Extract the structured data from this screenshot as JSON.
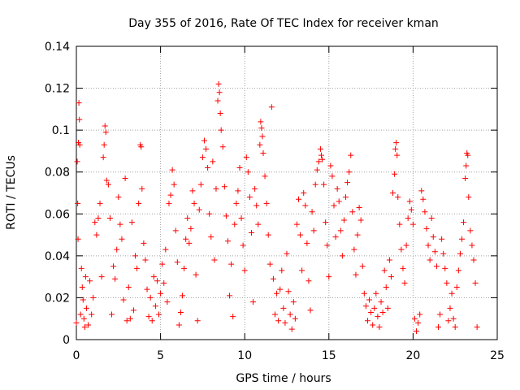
{
  "chart_data": {
    "type": "scatter",
    "title": "Day 355 of 2016, Rate Of TEC Index for receiver kman",
    "xlabel": "GPS time / hours",
    "ylabel": "ROTI / TECUs",
    "xlim": [
      0,
      25
    ],
    "ylim": [
      0,
      0.14
    ],
    "xticks": [
      0,
      5,
      10,
      15,
      20,
      25
    ],
    "xtick_labels": [
      "0",
      "5",
      "10",
      "15",
      "20",
      "25"
    ],
    "yticks": [
      0,
      0.02,
      0.04,
      0.06,
      0.08,
      0.1,
      0.12,
      0.14
    ],
    "ytick_labels": [
      "0",
      "0.02",
      "0.04",
      "0.06",
      "0.08",
      "0.1",
      "0.12",
      "0.14"
    ],
    "grid": true,
    "marker": "+",
    "marker_color": "#ff0000",
    "series": [
      {
        "name": "ROTI",
        "points": [
          [
            0.0,
            0.008
          ],
          [
            0.05,
            0.085
          ],
          [
            0.08,
            0.065
          ],
          [
            0.1,
            0.048
          ],
          [
            0.12,
            0.094
          ],
          [
            0.15,
            0.113
          ],
          [
            0.18,
            0.105
          ],
          [
            0.2,
            0.093
          ],
          [
            0.25,
            0.012
          ],
          [
            0.3,
            0.034
          ],
          [
            0.35,
            0.025
          ],
          [
            0.4,
            0.019
          ],
          [
            0.45,
            0.01
          ],
          [
            0.5,
            0.006
          ],
          [
            0.55,
            0.03
          ],
          [
            0.6,
            0.015
          ],
          [
            0.7,
            0.007
          ],
          [
            0.8,
            0.028
          ],
          [
            0.9,
            0.012
          ],
          [
            1.0,
            0.02
          ],
          [
            1.1,
            0.056
          ],
          [
            1.2,
            0.05
          ],
          [
            1.3,
            0.058
          ],
          [
            1.4,
            0.065
          ],
          [
            1.5,
            0.03
          ],
          [
            1.6,
            0.087
          ],
          [
            1.65,
            0.093
          ],
          [
            1.7,
            0.102
          ],
          [
            1.75,
            0.099
          ],
          [
            1.8,
            0.076
          ],
          [
            1.9,
            0.074
          ],
          [
            2.0,
            0.058
          ],
          [
            2.1,
            0.012
          ],
          [
            2.2,
            0.035
          ],
          [
            2.3,
            0.029
          ],
          [
            2.4,
            0.043
          ],
          [
            2.5,
            0.068
          ],
          [
            2.6,
            0.055
          ],
          [
            2.7,
            0.048
          ],
          [
            2.8,
            0.019
          ],
          [
            2.9,
            0.077
          ],
          [
            3.0,
            0.009
          ],
          [
            3.1,
            0.025
          ],
          [
            3.2,
            0.01
          ],
          [
            3.3,
            0.056
          ],
          [
            3.4,
            0.014
          ],
          [
            3.5,
            0.04
          ],
          [
            3.6,
            0.034
          ],
          [
            3.7,
            0.065
          ],
          [
            3.8,
            0.093
          ],
          [
            3.85,
            0.092
          ],
          [
            3.9,
            0.072
          ],
          [
            4.0,
            0.046
          ],
          [
            4.1,
            0.038
          ],
          [
            4.2,
            0.024
          ],
          [
            4.3,
            0.011
          ],
          [
            4.4,
            0.02
          ],
          [
            4.5,
            0.009
          ],
          [
            4.6,
            0.03
          ],
          [
            4.7,
            0.016
          ],
          [
            4.8,
            0.028
          ],
          [
            4.9,
            0.012
          ],
          [
            5.0,
            0.022
          ],
          [
            5.1,
            0.036
          ],
          [
            5.2,
            0.027
          ],
          [
            5.3,
            0.043
          ],
          [
            5.4,
            0.018
          ],
          [
            5.5,
            0.065
          ],
          [
            5.6,
            0.069
          ],
          [
            5.7,
            0.081
          ],
          [
            5.8,
            0.074
          ],
          [
            5.9,
            0.052
          ],
          [
            6.0,
            0.037
          ],
          [
            6.1,
            0.007
          ],
          [
            6.2,
            0.013
          ],
          [
            6.3,
            0.021
          ],
          [
            6.4,
            0.034
          ],
          [
            6.5,
            0.048
          ],
          [
            6.6,
            0.058
          ],
          [
            6.7,
            0.046
          ],
          [
            6.8,
            0.053
          ],
          [
            6.9,
            0.071
          ],
          [
            7.0,
            0.065
          ],
          [
            7.1,
            0.031
          ],
          [
            7.2,
            0.009
          ],
          [
            7.3,
            0.062
          ],
          [
            7.4,
            0.074
          ],
          [
            7.5,
            0.087
          ],
          [
            7.6,
            0.095
          ],
          [
            7.7,
            0.091
          ],
          [
            7.8,
            0.082
          ],
          [
            7.9,
            0.06
          ],
          [
            8.0,
            0.049
          ],
          [
            8.1,
            0.085
          ],
          [
            8.2,
            0.038
          ],
          [
            8.3,
            0.072
          ],
          [
            8.4,
            0.114
          ],
          [
            8.45,
            0.122
          ],
          [
            8.5,
            0.118
          ],
          [
            8.55,
            0.108
          ],
          [
            8.6,
            0.1
          ],
          [
            8.7,
            0.092
          ],
          [
            8.8,
            0.073
          ],
          [
            8.9,
            0.059
          ],
          [
            9.0,
            0.047
          ],
          [
            9.1,
            0.021
          ],
          [
            9.2,
            0.036
          ],
          [
            9.3,
            0.011
          ],
          [
            9.4,
            0.055
          ],
          [
            9.5,
            0.065
          ],
          [
            9.6,
            0.071
          ],
          [
            9.7,
            0.082
          ],
          [
            9.8,
            0.058
          ],
          [
            9.9,
            0.045
          ],
          [
            10.0,
            0.033
          ],
          [
            10.1,
            0.087
          ],
          [
            10.2,
            0.08
          ],
          [
            10.3,
            0.068
          ],
          [
            10.4,
            0.051
          ],
          [
            10.5,
            0.018
          ],
          [
            10.6,
            0.072
          ],
          [
            10.7,
            0.064
          ],
          [
            10.8,
            0.055
          ],
          [
            10.9,
            0.093
          ],
          [
            10.95,
            0.104
          ],
          [
            11.0,
            0.101
          ],
          [
            11.05,
            0.097
          ],
          [
            11.1,
            0.089
          ],
          [
            11.2,
            0.078
          ],
          [
            11.3,
            0.065
          ],
          [
            11.4,
            0.05
          ],
          [
            11.5,
            0.036
          ],
          [
            11.6,
            0.111
          ],
          [
            11.7,
            0.029
          ],
          [
            11.8,
            0.012
          ],
          [
            11.9,
            0.022
          ],
          [
            12.0,
            0.009
          ],
          [
            12.1,
            0.024
          ],
          [
            12.2,
            0.033
          ],
          [
            12.3,
            0.015
          ],
          [
            12.4,
            0.008
          ],
          [
            12.5,
            0.041
          ],
          [
            12.6,
            0.023
          ],
          [
            12.7,
            0.012
          ],
          [
            12.8,
            0.005
          ],
          [
            12.9,
            0.018
          ],
          [
            13.0,
            0.01
          ],
          [
            13.1,
            0.055
          ],
          [
            13.2,
            0.067
          ],
          [
            13.3,
            0.05
          ],
          [
            13.4,
            0.033
          ],
          [
            13.5,
            0.07
          ],
          [
            13.6,
            0.064
          ],
          [
            13.7,
            0.046
          ],
          [
            13.8,
            0.028
          ],
          [
            13.9,
            0.014
          ],
          [
            14.0,
            0.061
          ],
          [
            14.1,
            0.052
          ],
          [
            14.2,
            0.074
          ],
          [
            14.3,
            0.081
          ],
          [
            14.4,
            0.085
          ],
          [
            14.5,
            0.091
          ],
          [
            14.55,
            0.088
          ],
          [
            14.6,
            0.086
          ],
          [
            14.7,
            0.074
          ],
          [
            14.8,
            0.056
          ],
          [
            14.9,
            0.045
          ],
          [
            15.0,
            0.03
          ],
          [
            15.1,
            0.083
          ],
          [
            15.2,
            0.078
          ],
          [
            15.3,
            0.064
          ],
          [
            15.4,
            0.049
          ],
          [
            15.5,
            0.072
          ],
          [
            15.6,
            0.066
          ],
          [
            15.7,
            0.052
          ],
          [
            15.8,
            0.04
          ],
          [
            15.9,
            0.057
          ],
          [
            16.0,
            0.068
          ],
          [
            16.1,
            0.075
          ],
          [
            16.2,
            0.08
          ],
          [
            16.3,
            0.088
          ],
          [
            16.4,
            0.061
          ],
          [
            16.5,
            0.043
          ],
          [
            16.6,
            0.031
          ],
          [
            16.7,
            0.05
          ],
          [
            16.8,
            0.063
          ],
          [
            16.9,
            0.057
          ],
          [
            17.0,
            0.035
          ],
          [
            17.1,
            0.022
          ],
          [
            17.2,
            0.016
          ],
          [
            17.3,
            0.009
          ],
          [
            17.4,
            0.019
          ],
          [
            17.5,
            0.013
          ],
          [
            17.6,
            0.007
          ],
          [
            17.7,
            0.015
          ],
          [
            17.8,
            0.022
          ],
          [
            17.9,
            0.011
          ],
          [
            18.0,
            0.006
          ],
          [
            18.1,
            0.018
          ],
          [
            18.2,
            0.013
          ],
          [
            18.3,
            0.033
          ],
          [
            18.4,
            0.025
          ],
          [
            18.5,
            0.015
          ],
          [
            18.6,
            0.038
          ],
          [
            18.7,
            0.03
          ],
          [
            18.8,
            0.07
          ],
          [
            18.9,
            0.079
          ],
          [
            18.95,
            0.091
          ],
          [
            19.0,
            0.094
          ],
          [
            19.05,
            0.088
          ],
          [
            19.1,
            0.068
          ],
          [
            19.2,
            0.055
          ],
          [
            19.3,
            0.043
          ],
          [
            19.4,
            0.034
          ],
          [
            19.5,
            0.027
          ],
          [
            19.6,
            0.045
          ],
          [
            19.7,
            0.058
          ],
          [
            19.8,
            0.066
          ],
          [
            19.9,
            0.062
          ],
          [
            20.0,
            0.055
          ],
          [
            20.1,
            0.01
          ],
          [
            20.2,
            0.004
          ],
          [
            20.3,
            0.008
          ],
          [
            20.4,
            0.012
          ],
          [
            20.5,
            0.071
          ],
          [
            20.6,
            0.067
          ],
          [
            20.7,
            0.061
          ],
          [
            20.8,
            0.053
          ],
          [
            20.9,
            0.045
          ],
          [
            21.0,
            0.038
          ],
          [
            21.1,
            0.058
          ],
          [
            21.2,
            0.049
          ],
          [
            21.3,
            0.042
          ],
          [
            21.4,
            0.035
          ],
          [
            21.5,
            0.006
          ],
          [
            21.6,
            0.012
          ],
          [
            21.7,
            0.048
          ],
          [
            21.8,
            0.041
          ],
          [
            21.9,
            0.034
          ],
          [
            22.0,
            0.027
          ],
          [
            22.1,
            0.009
          ],
          [
            22.2,
            0.015
          ],
          [
            22.3,
            0.022
          ],
          [
            22.4,
            0.01
          ],
          [
            22.5,
            0.006
          ],
          [
            22.6,
            0.025
          ],
          [
            22.7,
            0.033
          ],
          [
            22.8,
            0.041
          ],
          [
            22.9,
            0.048
          ],
          [
            23.0,
            0.056
          ],
          [
            23.1,
            0.077
          ],
          [
            23.15,
            0.083
          ],
          [
            23.2,
            0.089
          ],
          [
            23.25,
            0.088
          ],
          [
            23.3,
            0.068
          ],
          [
            23.4,
            0.052
          ],
          [
            23.5,
            0.045
          ],
          [
            23.6,
            0.038
          ],
          [
            23.7,
            0.027
          ],
          [
            23.8,
            0.006
          ]
        ]
      }
    ]
  }
}
